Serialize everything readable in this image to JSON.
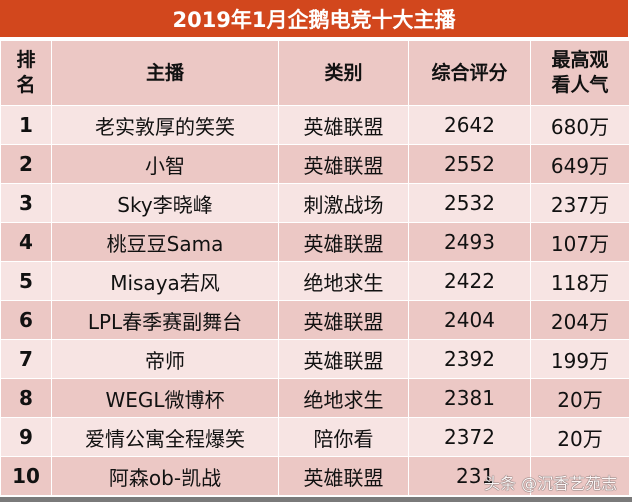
{
  "title": "2019年1月企鹅电竞十大主播",
  "headers": {
    "rank": "排名",
    "streamer": "主播",
    "category": "类别",
    "score": "综合评分",
    "peak_viewers": "最高观看人气"
  },
  "rows": [
    {
      "rank": "1",
      "streamer": "老实敦厚的笑笑",
      "category": "英雄联盟",
      "score": "2642",
      "peak_viewers": "680万"
    },
    {
      "rank": "2",
      "streamer": "小智",
      "category": "英雄联盟",
      "score": "2552",
      "peak_viewers": "649万"
    },
    {
      "rank": "3",
      "streamer": "Sky李晓峰",
      "category": "刺激战场",
      "score": "2532",
      "peak_viewers": "237万"
    },
    {
      "rank": "4",
      "streamer": "桃豆豆Sama",
      "category": "英雄联盟",
      "score": "2493",
      "peak_viewers": "107万"
    },
    {
      "rank": "5",
      "streamer": "Misaya若风",
      "category": "绝地求生",
      "score": "2422",
      "peak_viewers": "118万"
    },
    {
      "rank": "6",
      "streamer": "LPL春季赛副舞台",
      "category": "英雄联盟",
      "score": "2404",
      "peak_viewers": "204万"
    },
    {
      "rank": "7",
      "streamer": "帝师",
      "category": "英雄联盟",
      "score": "2392",
      "peak_viewers": "199万"
    },
    {
      "rank": "8",
      "streamer": "WEGL微博杯",
      "category": "绝地求生",
      "score": "2381",
      "peak_viewers": "20万"
    },
    {
      "rank": "9",
      "streamer": "爱情公寓全程爆笑",
      "category": "陪你看",
      "score": "2372",
      "peak_viewers": "20万"
    },
    {
      "rank": "10",
      "streamer": "阿森ob-凯战",
      "category": "英雄联盟",
      "score": "231",
      "peak_viewers": ""
    }
  ],
  "watermark": "头条 @沉香艺苑志",
  "colors": {
    "title_bg": "#d2471d",
    "header_bg": "#ecc8c5",
    "row_light": "#f7e4e3",
    "row_dark": "#ecc8c5"
  }
}
